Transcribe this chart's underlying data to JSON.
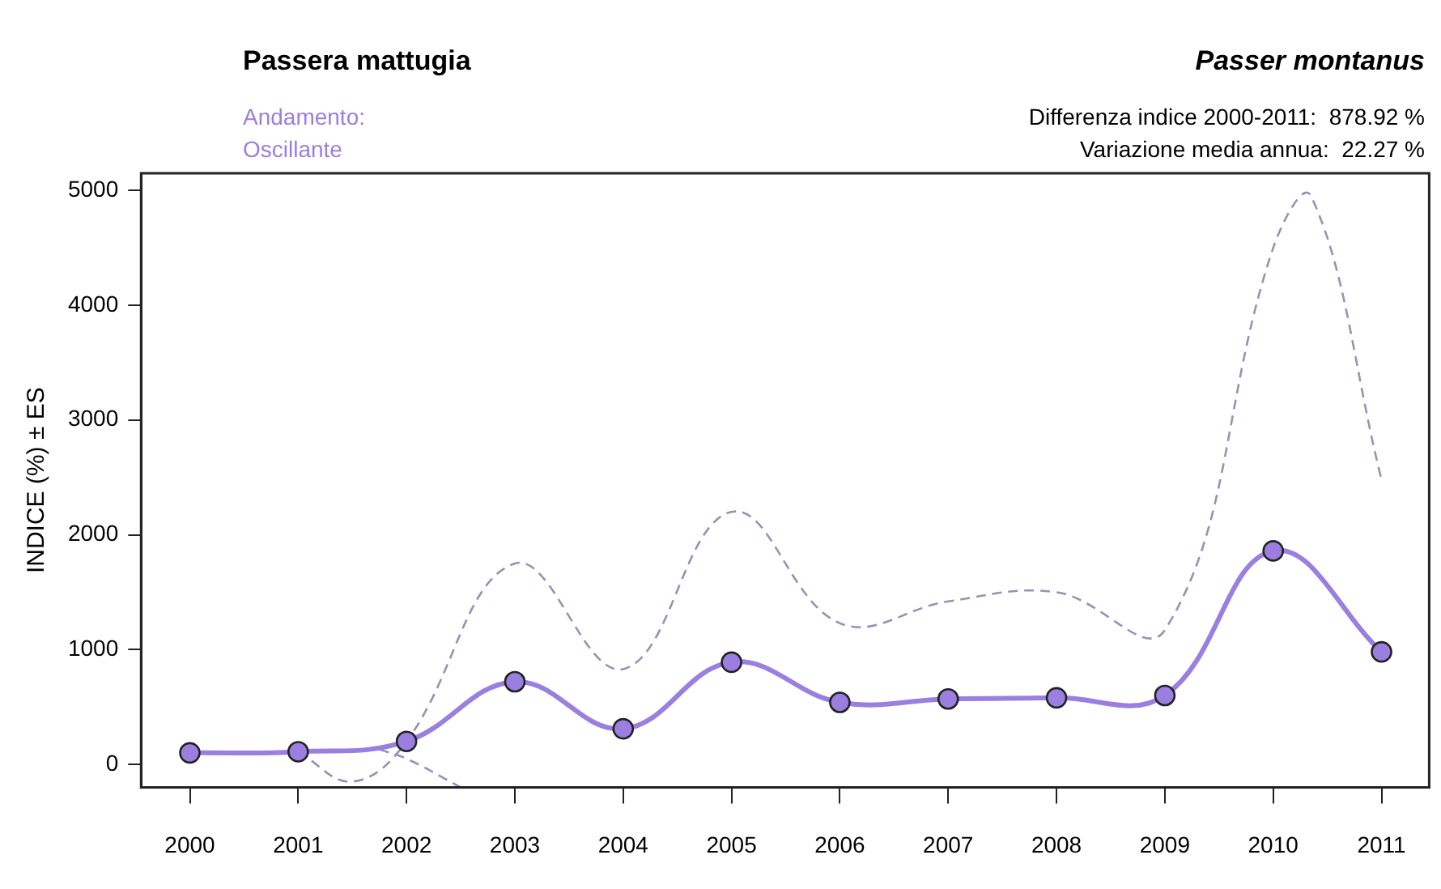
{
  "chart_data": {
    "type": "line",
    "title": "Passera mattugia",
    "subtitle": "Passer montanus",
    "ylabel": "INDICE (%) ± ES",
    "annotations": [
      "Andamento:",
      "Oscillante",
      "Differenza indice 2000-2011:  878.92 %",
      "Variazione media annua:  22.27 %"
    ],
    "x": [
      2000,
      2001,
      2002,
      2003,
      2004,
      2005,
      2006,
      2007,
      2008,
      2009,
      2010,
      2011
    ],
    "xlim": [
      1999.55,
      2011.44
    ],
    "xticks": [
      2000,
      2001,
      2002,
      2003,
      2004,
      2005,
      2006,
      2007,
      2008,
      2009,
      2010,
      2011
    ],
    "ylim": [
      -200,
      5150
    ],
    "yticks": [
      0,
      1000,
      2000,
      3000,
      4000,
      5000
    ],
    "grid": false,
    "legend": false,
    "series": [
      {
        "color": "#9b7fe0",
        "marker": "circle",
        "line_style": "solid",
        "values": [
          100,
          110,
          200,
          720,
          310,
          890,
          540,
          570,
          580,
          600,
          1860,
          980
        ]
      },
      {
        "color": "#9c8fb8",
        "marker": "none",
        "line_style": "dashed",
        "x": [
          2001,
          2001.5,
          2002,
          2003,
          2004,
          2005,
          2006,
          2007,
          2008,
          2009,
          2010,
          2010.35,
          2011
        ],
        "values": [
          110,
          -150,
          200,
          1750,
          830,
          2200,
          1230,
          1420,
          1500,
          1170,
          4500,
          4950,
          2480
        ]
      },
      {
        "color": "#9c8fb8",
        "marker": "none",
        "line_style": "dashed",
        "x": [
          2001.75,
          2002,
          2002.5
        ],
        "values": [
          130,
          50,
          -200
        ]
      }
    ]
  }
}
